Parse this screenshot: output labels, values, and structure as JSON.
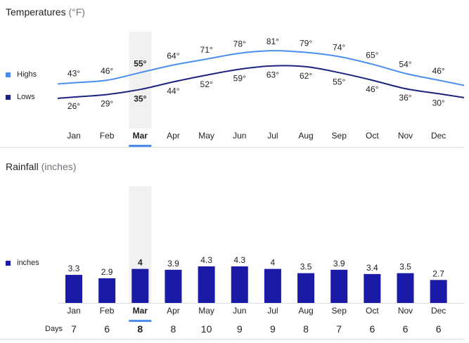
{
  "colors": {
    "highs": "#4a8ef0",
    "lows": "#1a237e",
    "bars": "#1a1aa6",
    "selected_underline": "#4a8ef0",
    "selected_band": "#f1f1f1"
  },
  "temperatures": {
    "title": "Temperatures",
    "unit": "(°F)"
  },
  "rainfall": {
    "title": "Rainfall",
    "unit": "(inches)"
  },
  "legend": {
    "highs": "Highs",
    "lows": "Lows",
    "inches": "inches"
  },
  "days_label": "Days",
  "selected_month": "Mar",
  "chart_data": [
    {
      "type": "line",
      "title": "Temperatures (°F)",
      "categories": [
        "Jan",
        "Feb",
        "Mar",
        "Apr",
        "May",
        "Jun",
        "Jul",
        "Aug",
        "Sep",
        "Oct",
        "Nov",
        "Dec"
      ],
      "series": [
        {
          "name": "Highs",
          "values": [
            43,
            46,
            55,
            64,
            71,
            78,
            81,
            79,
            74,
            65,
            54,
            46
          ]
        },
        {
          "name": "Lows",
          "values": [
            26,
            29,
            35,
            44,
            52,
            59,
            63,
            62,
            55,
            46,
            36,
            30
          ]
        }
      ],
      "value_suffix": "°",
      "legend_position": "left",
      "grid": false
    },
    {
      "type": "bar",
      "title": "Rainfall (inches)",
      "categories": [
        "Jan",
        "Feb",
        "Mar",
        "Apr",
        "May",
        "Jun",
        "Jul",
        "Aug",
        "Sep",
        "Oct",
        "Nov",
        "Dec"
      ],
      "series": [
        {
          "name": "inches",
          "values": [
            3.3,
            2.9,
            4,
            3.9,
            4.3,
            4.3,
            4,
            3.5,
            3.9,
            3.4,
            3.5,
            2.7
          ]
        }
      ],
      "value_labels": [
        "3.3",
        "2.9",
        "4",
        "3.9",
        "4.3",
        "4.3",
        "4",
        "3.5",
        "3.9",
        "3.4",
        "3.5",
        "2.7"
      ],
      "days": [
        7,
        6,
        8,
        8,
        10,
        9,
        9,
        8,
        7,
        6,
        6,
        6
      ],
      "legend_position": "left",
      "grid": false
    }
  ]
}
